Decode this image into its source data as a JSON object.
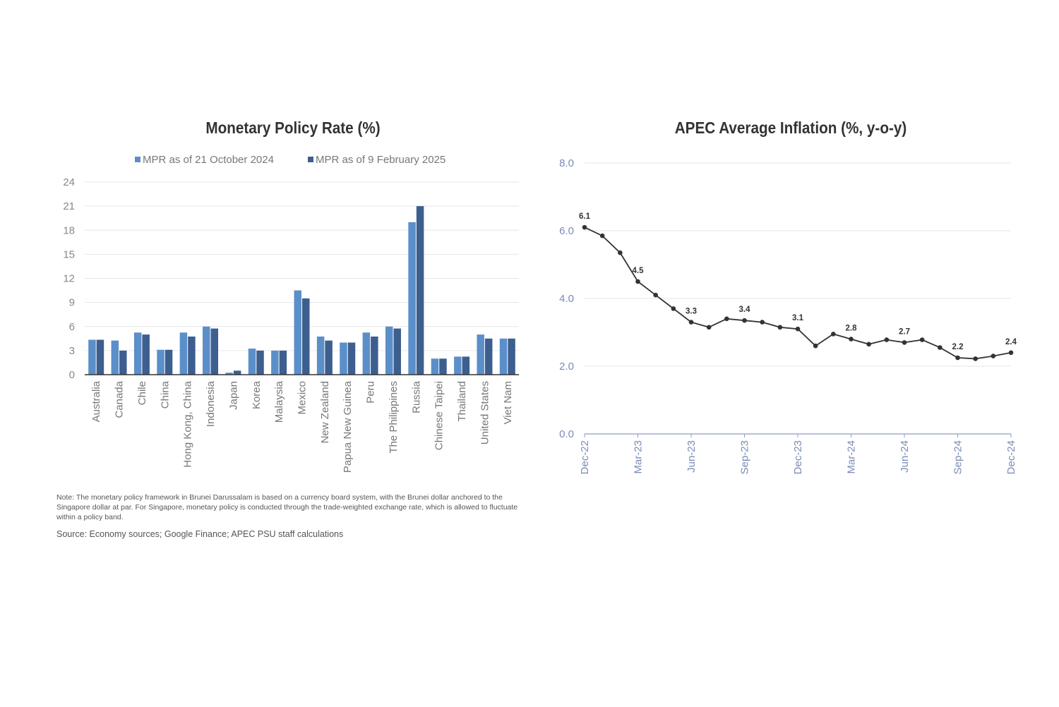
{
  "charts": {
    "bar_title": "Monetary Policy Rate (%)",
    "line_title": "APEC Average Inflation (%, y-o-y)",
    "note": "Note: The monetary policy framework in Brunei Darussalam is based on a currency board system, with the Brunei dollar anchored to the Singapore dollar at par. For Singapore, monetary policy is conducted through the trade-weighted exchange rate, which is allowed to fluctuate within a policy band.",
    "source": "Source: Economy sources; Google Finance; APEC PSU staff calculations",
    "colors": {
      "series_a": "#5b8fc9",
      "series_b": "#3d5f8f",
      "line": "#333333",
      "grid": "#e6e6e6"
    }
  },
  "chart_data": [
    {
      "type": "bar",
      "title": "Monetary Policy Rate (%)",
      "categories": [
        "Australia",
        "Canada",
        "Chile",
        "China",
        "Hong Kong, China",
        "Indonesia",
        "Japan",
        "Korea",
        "Malaysia",
        "Mexico",
        "New Zealand",
        "Papua New Guinea",
        "Peru",
        "The Philippines",
        "Russia",
        "Chinese Taipei",
        "Thailand",
        "United States",
        "Viet Nam"
      ],
      "series": [
        {
          "name": "MPR as of 21 October 2024",
          "values": [
            4.35,
            4.25,
            5.25,
            3.1,
            5.25,
            6.0,
            0.25,
            3.25,
            3.0,
            10.5,
            4.75,
            4.0,
            5.25,
            6.0,
            19.0,
            2.0,
            2.25,
            5.0,
            4.5
          ]
        },
        {
          "name": "MPR as of 9 February 2025",
          "values": [
            4.35,
            3.0,
            5.0,
            3.1,
            4.75,
            5.75,
            0.5,
            3.0,
            3.0,
            9.5,
            4.25,
            4.0,
            4.75,
            5.75,
            21.0,
            2.0,
            2.25,
            4.5,
            4.5
          ]
        }
      ],
      "yticks": [
        "0",
        "3",
        "6",
        "9",
        "12",
        "15",
        "18",
        "21",
        "24"
      ],
      "ylim": [
        0,
        24
      ],
      "grid": true,
      "legend": "top"
    },
    {
      "type": "line",
      "title": "APEC Average Inflation (%, y-o-y)",
      "x": [
        "Dec-22",
        "Jan-23",
        "Feb-23",
        "Mar-23",
        "Apr-23",
        "May-23",
        "Jun-23",
        "Jul-23",
        "Aug-23",
        "Sep-23",
        "Oct-23",
        "Nov-23",
        "Dec-23",
        "Jan-24",
        "Feb-24",
        "Mar-24",
        "Apr-24",
        "May-24",
        "Jun-24",
        "Jul-24",
        "Aug-24",
        "Sep-24",
        "Oct-24",
        "Nov-24",
        "Dec-24"
      ],
      "values": [
        6.1,
        5.85,
        5.35,
        4.5,
        4.1,
        3.7,
        3.3,
        3.15,
        3.4,
        3.35,
        3.3,
        3.15,
        3.1,
        2.6,
        2.95,
        2.8,
        2.65,
        2.78,
        2.7,
        2.78,
        2.55,
        2.25,
        2.22,
        2.3,
        2.4
      ],
      "data_labels": [
        {
          "index": 0,
          "text": "6.1"
        },
        {
          "index": 3,
          "text": "4.5"
        },
        {
          "index": 6,
          "text": "3.3"
        },
        {
          "index": 9,
          "text": "3.4"
        },
        {
          "index": 12,
          "text": "3.1"
        },
        {
          "index": 15,
          "text": "2.8"
        },
        {
          "index": 18,
          "text": "2.7"
        },
        {
          "index": 21,
          "text": "2.2"
        },
        {
          "index": 24,
          "text": "2.4"
        }
      ],
      "xticks": [
        "Dec-22",
        "Mar-23",
        "Jun-23",
        "Sep-23",
        "Dec-23",
        "Mar-24",
        "Jun-24",
        "Sep-24",
        "Dec-24"
      ],
      "yticks": [
        "0.0",
        "2.0",
        "4.0",
        "6.0",
        "8.0"
      ],
      "ylim": [
        0,
        8
      ],
      "grid": true
    }
  ]
}
